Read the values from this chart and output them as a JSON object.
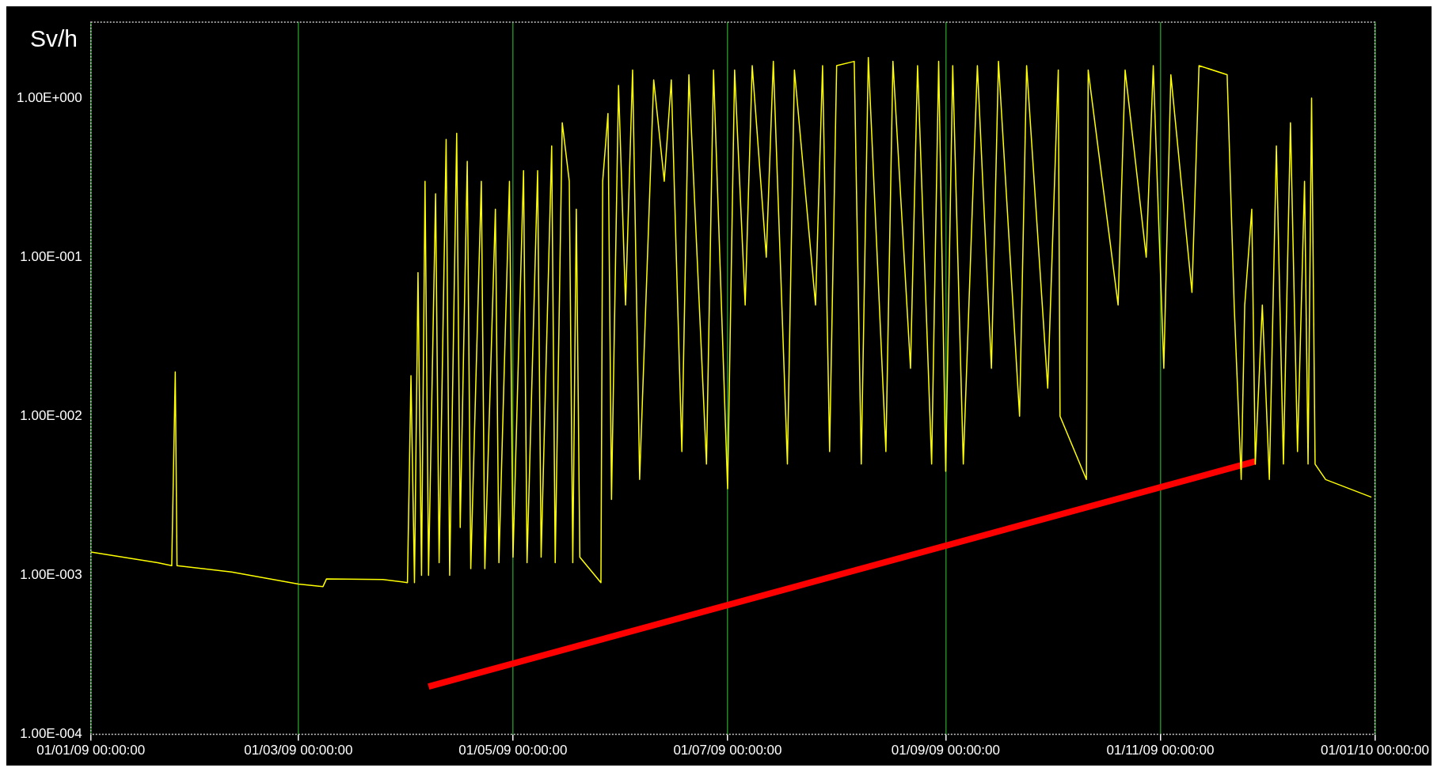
{
  "chart_data": {
    "type": "line",
    "ylabel": "Sv/h",
    "log": "y",
    "grid": "x",
    "legend": false,
    "marker": "none",
    "line_style": "solid",
    "xlim": [
      "2009-01-01",
      "2010-01-01"
    ],
    "xticks": [
      {
        "value": "2009-01-01",
        "label": "01/01/09 00:00:00"
      },
      {
        "value": "2009-03-01",
        "label": "01/03/09 00:00:00"
      },
      {
        "value": "2009-05-01",
        "label": "01/05/09 00:00:00"
      },
      {
        "value": "2009-07-01",
        "label": "01/07/09 00:00:00"
      },
      {
        "value": "2009-09-01",
        "label": "01/09/09 00:00:00"
      },
      {
        "value": "2009-11-01",
        "label": "01/11/09 00:00:00"
      },
      {
        "value": "2010-01-01",
        "label": "01/01/10 00:00:00"
      }
    ],
    "ylim": [
      0.0001,
      3
    ],
    "yticks": [
      {
        "value": 0.0001,
        "label": "1.00E-004"
      },
      {
        "value": 0.001,
        "label": "1.00E-003"
      },
      {
        "value": 0.01,
        "label": "1.00E-002"
      },
      {
        "value": 0.1,
        "label": "1.00E-001"
      },
      {
        "value": 1,
        "label": "1.00E+000"
      }
    ],
    "series": [
      {
        "color": "#ffff00",
        "x": [
          "2009-01-01",
          "2009-01-20",
          "2009-01-24",
          "2009-01-25",
          "2009-01-25T12:00",
          "2009-02-10",
          "2009-03-01",
          "2009-03-08",
          "2009-03-09",
          "2009-03-25",
          "2009-04-01",
          "2009-04-02",
          "2009-04-03",
          "2009-04-04",
          "2009-04-05",
          "2009-04-06",
          "2009-04-07",
          "2009-04-09",
          "2009-04-10",
          "2009-04-12",
          "2009-04-13",
          "2009-04-15",
          "2009-04-16",
          "2009-04-18",
          "2009-04-19",
          "2009-04-22",
          "2009-04-23",
          "2009-04-26",
          "2009-04-27",
          "2009-04-30",
          "2009-05-01",
          "2009-05-04",
          "2009-05-05",
          "2009-05-08",
          "2009-05-09",
          "2009-05-12",
          "2009-05-13",
          "2009-05-15",
          "2009-05-17",
          "2009-05-18",
          "2009-05-19",
          "2009-05-20",
          "2009-05-26",
          "2009-05-26T12:00",
          "2009-05-28",
          "2009-05-29",
          "2009-05-31",
          "2009-06-02",
          "2009-06-04",
          "2009-06-06",
          "2009-06-10",
          "2009-06-13",
          "2009-06-15",
          "2009-06-18",
          "2009-06-20",
          "2009-06-25",
          "2009-06-27",
          "2009-07-01",
          "2009-07-03",
          "2009-07-06",
          "2009-07-08",
          "2009-07-12",
          "2009-07-14",
          "2009-07-18",
          "2009-07-20",
          "2009-07-26",
          "2009-07-28",
          "2009-07-30",
          "2009-08-01",
          "2009-08-06",
          "2009-08-08",
          "2009-08-10",
          "2009-08-15",
          "2009-08-17",
          "2009-08-22",
          "2009-08-24",
          "2009-08-28",
          "2009-08-30",
          "2009-09-01",
          "2009-09-03",
          "2009-09-06",
          "2009-09-10",
          "2009-09-14",
          "2009-09-16",
          "2009-09-22",
          "2009-09-24",
          "2009-09-30",
          "2009-10-03",
          "2009-10-03T12:00",
          "2009-10-11",
          "2009-10-11T12:00",
          "2009-10-20",
          "2009-10-22",
          "2009-10-28",
          "2009-10-30",
          "2009-11-02",
          "2009-11-04",
          "2009-11-10",
          "2009-11-12",
          "2009-11-20",
          "2009-11-22",
          "2009-11-24",
          "2009-11-25",
          "2009-11-27",
          "2009-11-28",
          "2009-11-30",
          "2009-12-02",
          "2009-12-04",
          "2009-12-06",
          "2009-12-08",
          "2009-12-10",
          "2009-12-12",
          "2009-12-13",
          "2009-12-14",
          "2009-12-15",
          "2009-12-18",
          "2009-12-31"
        ],
        "values": [
          0.0014,
          0.0012,
          0.00115,
          0.019,
          0.00115,
          0.00105,
          0.00088,
          0.00085,
          0.00095,
          0.00094,
          0.0009,
          0.018,
          0.0009,
          0.08,
          0.001,
          0.3,
          0.001,
          0.25,
          0.0012,
          0.55,
          0.001,
          0.6,
          0.002,
          0.4,
          0.0011,
          0.3,
          0.0011,
          0.2,
          0.0012,
          0.3,
          0.0013,
          0.35,
          0.0012,
          0.35,
          0.0013,
          0.5,
          0.0012,
          0.7,
          0.3,
          0.0012,
          0.2,
          0.0013,
          0.0009,
          0.3,
          0.8,
          0.003,
          1.2,
          0.05,
          1.5,
          0.004,
          1.3,
          0.3,
          1.3,
          0.006,
          1.4,
          0.005,
          1.5,
          0.0035,
          1.5,
          0.05,
          1.6,
          0.1,
          1.7,
          0.005,
          1.5,
          0.05,
          1.6,
          0.006,
          1.6,
          1.7,
          0.005,
          1.8,
          0.006,
          1.7,
          0.02,
          1.6,
          0.005,
          1.7,
          0.0045,
          1.6,
          0.005,
          1.6,
          0.02,
          1.7,
          0.01,
          1.6,
          0.015,
          1.5,
          0.01,
          0.004,
          1.5,
          0.05,
          1.5,
          0.1,
          1.6,
          0.02,
          1.4,
          0.06,
          1.6,
          1.4,
          0.05,
          0.004,
          0.05,
          0.2,
          0.005,
          0.05,
          0.004,
          0.5,
          0.005,
          0.7,
          0.006,
          0.3,
          0.005,
          1.0,
          0.005,
          0.004,
          0.0031
        ]
      },
      {
        "color": "#ff0000",
        "x": [
          "2009-04-07",
          "2009-11-28"
        ],
        "values": [
          0.0002,
          0.0052
        ]
      }
    ]
  }
}
